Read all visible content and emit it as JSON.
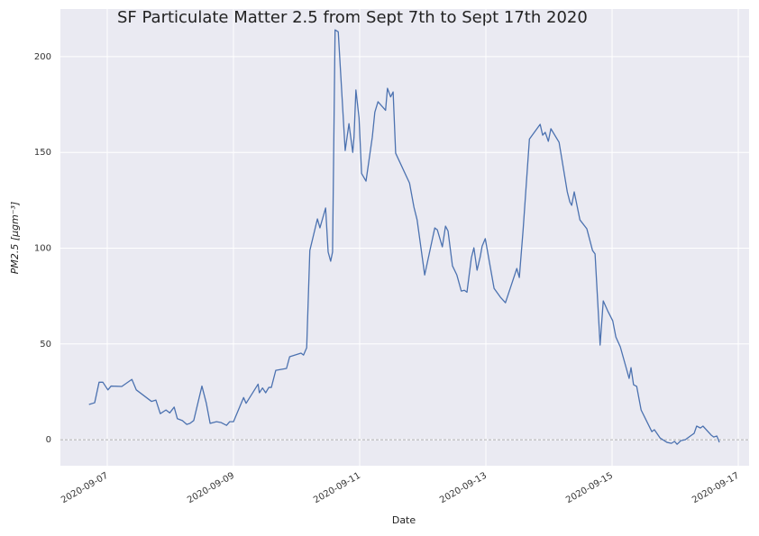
{
  "chart_data": {
    "type": "line",
    "title": "SF Particulate Matter 2.5 from Sept 7th to Sept 17th 2020",
    "xlabel": "Date",
    "ylabel": "PM2.5 [μgm⁻³]",
    "color": "#4c72b0",
    "grid": true,
    "hline": 0,
    "xlim": [
      6.257,
      17.171
    ],
    "ylim": [
      -13.6,
      224.9
    ],
    "xticks": [
      {
        "value": 7,
        "label": "2020-09-07"
      },
      {
        "value": 9,
        "label": "2020-09-09"
      },
      {
        "value": 11,
        "label": "2020-09-11"
      },
      {
        "value": 13,
        "label": "2020-09-13"
      },
      {
        "value": 15,
        "label": "2020-09-15"
      },
      {
        "value": 17,
        "label": "2020-09-17"
      }
    ],
    "yticks": [
      0,
      50,
      100,
      150,
      200
    ],
    "x": [
      6.71,
      6.8,
      6.87,
      6.93,
      7.01,
      7.06,
      7.23,
      7.39,
      7.46,
      7.7,
      7.77,
      7.84,
      7.93,
      7.99,
      8.06,
      8.11,
      8.19,
      8.26,
      8.31,
      8.37,
      8.5,
      8.57,
      8.63,
      8.73,
      8.8,
      8.89,
      8.94,
      9.0,
      9.16,
      9.2,
      9.39,
      9.41,
      9.46,
      9.51,
      9.56,
      9.6,
      9.67,
      9.84,
      9.89,
      10.07,
      10.11,
      10.16,
      10.21,
      10.33,
      10.37,
      10.46,
      10.5,
      10.54,
      10.57,
      10.61,
      10.66,
      10.77,
      10.83,
      10.89,
      10.91,
      10.94,
      10.99,
      11.03,
      11.1,
      11.2,
      11.24,
      11.29,
      11.41,
      11.44,
      11.49,
      11.53,
      11.57,
      11.79,
      11.86,
      11.91,
      12.03,
      12.19,
      12.23,
      12.31,
      12.36,
      12.4,
      12.47,
      12.54,
      12.61,
      12.66,
      12.7,
      12.77,
      12.81,
      12.86,
      12.91,
      12.94,
      12.99,
      13.13,
      13.23,
      13.31,
      13.49,
      13.53,
      13.59,
      13.69,
      13.86,
      13.9,
      13.94,
      13.99,
      14.03,
      14.16,
      14.29,
      14.33,
      14.36,
      14.4,
      14.49,
      14.6,
      14.69,
      14.73,
      14.81,
      14.86,
      14.93,
      15.01,
      15.06,
      15.13,
      15.27,
      15.3,
      15.34,
      15.39,
      15.46,
      15.51,
      15.63,
      15.67,
      15.76,
      15.87,
      15.94,
      15.99,
      16.03,
      16.09,
      16.16,
      16.26,
      16.3,
      16.34,
      16.4,
      16.44,
      16.57,
      16.61,
      16.66,
      16.7
    ],
    "values": [
      18.4,
      19.3,
      30,
      30,
      26,
      28,
      27.8,
      31.5,
      26,
      20,
      20.7,
      13.6,
      15.5,
      14,
      17,
      11,
      10,
      8,
      8.5,
      10,
      28,
      19,
      8.5,
      9.4,
      9,
      7.5,
      9.4,
      9.4,
      22,
      19,
      29,
      24.5,
      27,
      24.5,
      27.3,
      27.3,
      36.2,
      37.2,
      43.3,
      45.2,
      44.2,
      48,
      98.8,
      115.3,
      110.6,
      121,
      98,
      93.2,
      98,
      214,
      213,
      151,
      165,
      150,
      158,
      182.6,
      168,
      139,
      135,
      158,
      171,
      176.5,
      172,
      183.5,
      179,
      181.6,
      149.6,
      134,
      121.4,
      114.8,
      86,
      110.6,
      109.6,
      100.7,
      111.5,
      109,
      90.8,
      86,
      77.6,
      78,
      77,
      95,
      100.2,
      88.5,
      95.5,
      101,
      105,
      79,
      74.4,
      71.5,
      89.4,
      84.7,
      109.6,
      157,
      164.7,
      159,
      160.5,
      155.8,
      162.4,
      155.3,
      129.4,
      124.2,
      122.4,
      129.4,
      114.8,
      110.1,
      98.8,
      97,
      49.4,
      72.5,
      67.3,
      62.1,
      53.6,
      48.5,
      32,
      37.6,
      28.7,
      27.8,
      15.5,
      12.2,
      4.2,
      5.2,
      0.9,
      -1.4,
      -1.9,
      -0.9,
      -2.4,
      -0.5,
      0,
      2.4,
      3.3,
      7.1,
      6.1,
      7.1,
      2.4,
      1.4,
      1.9,
      -1.4
    ]
  }
}
